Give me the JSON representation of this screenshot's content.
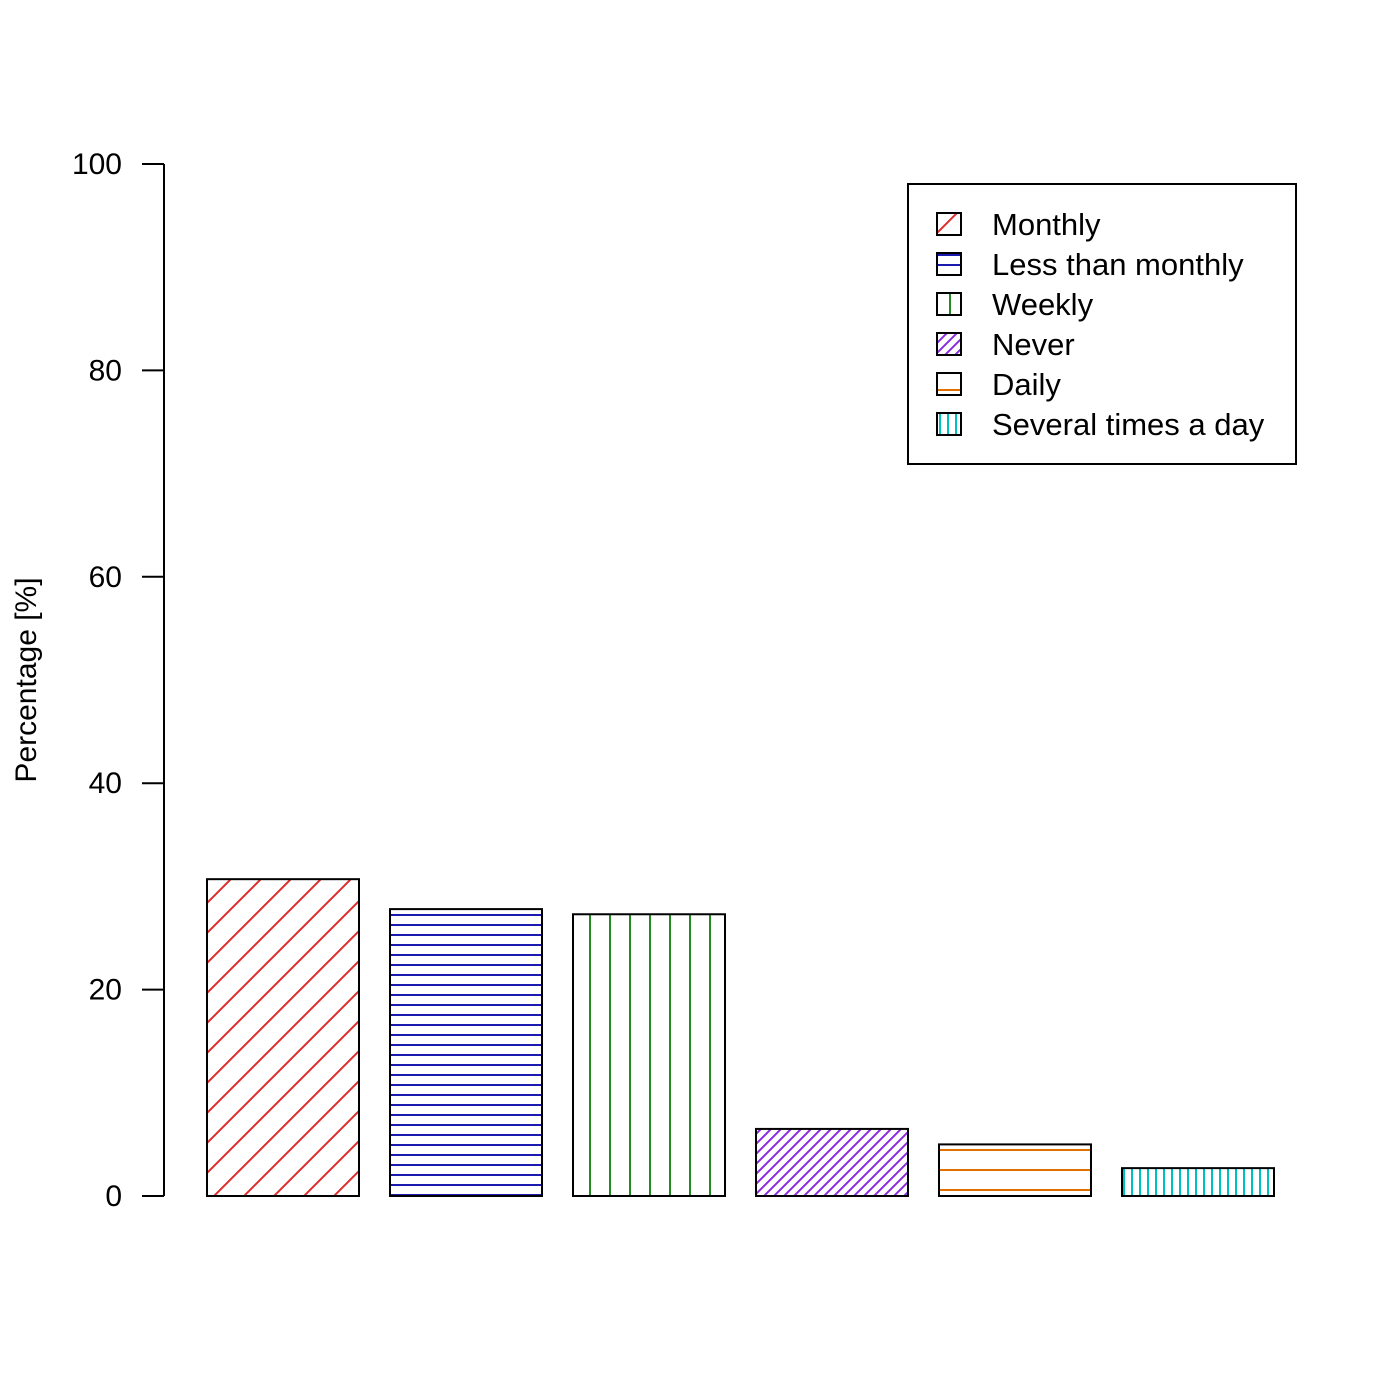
{
  "chart_data": {
    "type": "bar",
    "title": "",
    "xlabel": "",
    "ylabel": "Percentage [%]",
    "ylim": [
      0,
      100
    ],
    "yticks": [
      0,
      20,
      40,
      60,
      80,
      100
    ],
    "grid": false,
    "legend_position": "top-right",
    "categories": [
      "Monthly",
      "Less than monthly",
      "Weekly",
      "Never",
      "Daily",
      "Several times a day"
    ],
    "values": [
      30.7,
      27.8,
      27.3,
      6.5,
      5.0,
      2.7
    ],
    "colors": [
      "#DF2B2B",
      "#1A1AB0",
      "#228B22",
      "#8A2BE2",
      "#E07000",
      "#00C0C0"
    ],
    "hatch": [
      "diagonal",
      "horizontal",
      "vertical",
      "diagonal",
      "horizontal",
      "vertical"
    ]
  }
}
